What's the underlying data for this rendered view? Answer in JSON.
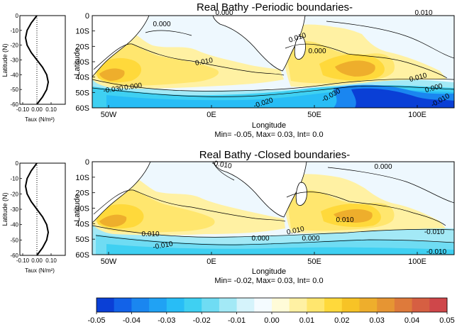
{
  "chart_data": [
    {
      "id": "wind-upper",
      "type": "line",
      "xlabel": "Taux (N/m²)",
      "ylabel": "Latitude (N)",
      "xlim": [
        -0.1,
        0.1
      ],
      "ylim": [
        -60,
        0
      ],
      "x_ticks": [
        "-0.10",
        "0.00",
        "0.10"
      ],
      "y_ticks": [
        "0",
        "-10",
        "-20",
        "-30",
        "-40",
        "-50",
        "-60"
      ],
      "series": [
        {
          "x": [
            0.0,
            -0.04,
            -0.069,
            -0.08,
            -0.069,
            -0.04,
            0.0,
            0.04,
            0.069,
            0.08,
            0.069,
            0.04,
            0.0
          ],
          "y": [
            0,
            -5,
            -10,
            -15,
            -20,
            -25,
            -30,
            -35,
            -40,
            -45,
            -50,
            -55,
            -60
          ]
        }
      ],
      "reference_line_x": 0.0
    },
    {
      "id": "map-upper",
      "type": "heatmap",
      "title": "Real Bathy -Periodic boundaries-",
      "xlabel": "Longitude",
      "ylabel": "Latitude",
      "x_ticks": [
        "50W",
        "0E",
        "50E",
        "100E"
      ],
      "y_ticks": [
        "0",
        "10S",
        "20S",
        "30S",
        "40S",
        "50S",
        "60S"
      ],
      "contour_labels": [
        "0.000",
        "0.000",
        "0.010",
        "0.010",
        "0.000",
        "0.010",
        "0.000",
        "-0.010",
        "-0.020",
        "-0.030",
        "-0.030",
        "0.000",
        "0.010"
      ],
      "stats": "Min= -0.05, Max= 0.03, Int= 0.0"
    },
    {
      "id": "wind-lower",
      "type": "line",
      "xlabel": "Taux (N/m²)",
      "ylabel": "Latitude (N)",
      "xlim": [
        -0.1,
        0.1
      ],
      "ylim": [
        -60,
        0
      ],
      "x_ticks": [
        "-0.10",
        "0.00",
        "0.10"
      ],
      "y_ticks": [
        "0",
        "-10",
        "-20",
        "-30",
        "-40",
        "-50",
        "-60"
      ],
      "series": [
        {
          "x": [
            0.0,
            -0.04,
            -0.069,
            -0.08,
            -0.069,
            -0.04,
            0.0,
            0.04,
            0.069,
            0.08,
            0.069,
            0.04,
            0.0
          ],
          "y": [
            0,
            -5,
            -10,
            -15,
            -20,
            -25,
            -30,
            -35,
            -40,
            -45,
            -50,
            -55,
            -60
          ]
        }
      ],
      "reference_line_x": 0.0
    },
    {
      "id": "map-lower",
      "type": "heatmap",
      "title": "Real Bathy -Closed boundaries-",
      "xlabel": "Longitude",
      "ylabel": "Latitude",
      "x_ticks": [
        "50W",
        "0E",
        "50E",
        "100E"
      ],
      "y_ticks": [
        "0",
        "10S",
        "20S",
        "30S",
        "40S",
        "50S",
        "60S"
      ],
      "contour_labels": [
        "-0.010",
        "0.000",
        "0.010",
        "0.000",
        "0.010",
        "0.000",
        "-0.010",
        "-0.010",
        "-0.010",
        "0.010"
      ],
      "stats": "Min= -0.02, Max= 0.03, Int= 0.0"
    }
  ],
  "colorbar": {
    "labels": [
      "-0.05",
      "-0.04",
      "-0.03",
      "-0.02",
      "-0.01",
      "0.00",
      "0.01",
      "0.02",
      "0.03",
      "0.04",
      "0.05"
    ],
    "colors": [
      "#0a3fd6",
      "#1262e8",
      "#1a86f0",
      "#20a2f4",
      "#28bdf6",
      "#3fd0f2",
      "#6fdcf3",
      "#a3e9f6",
      "#d5f3fb",
      "#f4fbff",
      "#fffbd8",
      "#fff1a3",
      "#ffe66e",
      "#ffd93b",
      "#f7c326",
      "#eeae2c",
      "#e69533",
      "#de7a3b",
      "#d65f42",
      "#cf474a"
    ]
  },
  "colors": {
    "land": "#ffffff",
    "line": "#000000",
    "panel_border": "#000000"
  }
}
